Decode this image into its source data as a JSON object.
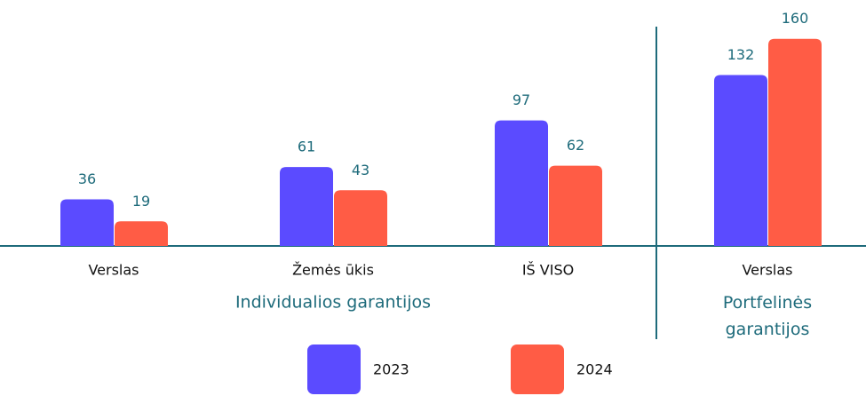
{
  "chart_data": {
    "type": "bar",
    "categories": [
      "Verslas",
      "Žemės ūkis",
      "IŠ VISO",
      "Verslas"
    ],
    "group_labels": [
      "Individualios garantijos",
      "Portfelinės garantijos"
    ],
    "series": [
      {
        "name": "2023",
        "color": "#5b4bff",
        "values": [
          36,
          61,
          97,
          132
        ]
      },
      {
        "name": "2024",
        "color": "#ff5c45",
        "values": [
          19,
          43,
          62,
          160
        ]
      }
    ],
    "ylim": [
      0,
      190
    ]
  }
}
